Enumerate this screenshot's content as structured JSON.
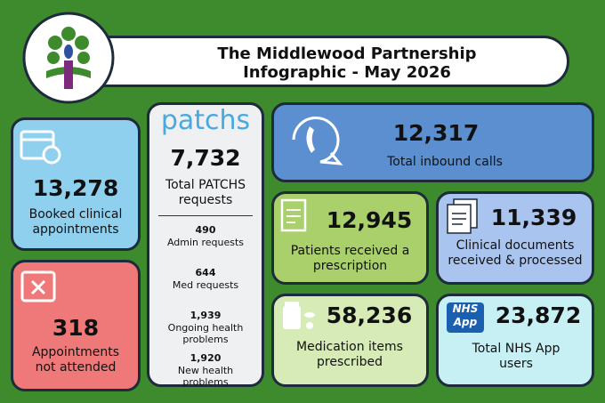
{
  "header": {
    "title": [
      "The Middlewood Partnership",
      "Infographic - May 2026"
    ]
  },
  "cards": {
    "booked": {
      "value": "13,278",
      "label": "Booked clinical appointments"
    },
    "dna": {
      "value": "318",
      "label": "Appointments not attended"
    },
    "calls": {
      "value": "12,317",
      "label": "Total inbound calls"
    },
    "prescription": {
      "value": "12,945",
      "label": "Patients received a prescription"
    },
    "documents": {
      "value": "11,339",
      "label": "Clinical documents received & processed"
    },
    "medication": {
      "value": "58,236",
      "label": "Medication items prescribed"
    },
    "nhsapp": {
      "value": "23,872",
      "label": "Total NHS App users",
      "badge": [
        "NHS",
        "App"
      ]
    }
  },
  "patchs": {
    "logo": "patchs",
    "value": "7,732",
    "label": "Total PATCHS requests",
    "items": [
      {
        "value": "490",
        "label": "Admin requests"
      },
      {
        "value": "644",
        "label": "Med requests"
      },
      {
        "value": "1,939",
        "label": "Ongoing health problems"
      },
      {
        "value": "1,920",
        "label": "New health problems"
      }
    ]
  }
}
